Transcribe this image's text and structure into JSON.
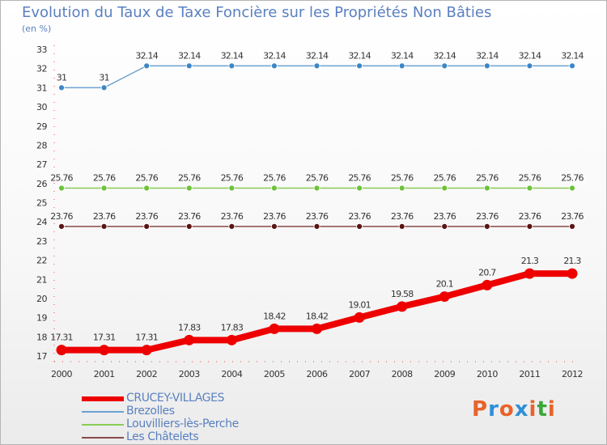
{
  "title": "Evolution du Taux de Taxe Foncière sur les Propriétés Non Bâties",
  "unit_label": "(en %)",
  "logo": {
    "text": "Proxiti",
    "letter_colors": [
      "#e8632b",
      "#2f8fd8",
      "#e8632b",
      "#2f8fd8",
      "#e8632b",
      "#38a838",
      "#e8632b"
    ]
  },
  "chart_data": {
    "type": "line",
    "title": "Evolution du Taux de Taxe Foncière sur les Propriétés Non Bâties",
    "ylabel": "(en %)",
    "x": [
      "2000",
      "2001",
      "2002",
      "2003",
      "2004",
      "2005",
      "2006",
      "2007",
      "2008",
      "2009",
      "2010",
      "2011",
      "2012"
    ],
    "ylim": [
      17,
      33
    ],
    "yticks": [
      17,
      18,
      19,
      20,
      21,
      22,
      23,
      24,
      25,
      26,
      27,
      28,
      29,
      30,
      31,
      32,
      33
    ],
    "grid": false,
    "legend_position": "bottom-left",
    "series": [
      {
        "name": "Brezolles",
        "color": "#6aa2d2",
        "marker": "#3d86c6",
        "values": [
          31,
          31,
          32.14,
          32.14,
          32.14,
          32.14,
          32.14,
          32.14,
          32.14,
          32.14,
          32.14,
          32.14,
          32.14
        ],
        "labels": [
          "31",
          "31",
          "32.14",
          "32.14",
          "32.14",
          "32.14",
          "32.14",
          "32.14",
          "32.14",
          "32.14",
          "32.14",
          "32.14",
          "32.14"
        ]
      },
      {
        "name": "Louvilliers-lès-Perche",
        "color": "#88cc55",
        "marker": "#6cc23a",
        "values": [
          25.76,
          25.76,
          25.76,
          25.76,
          25.76,
          25.76,
          25.76,
          25.76,
          25.76,
          25.76,
          25.76,
          25.76,
          25.76
        ],
        "labels": [
          "25.76",
          "25.76",
          "25.76",
          "25.76",
          "25.76",
          "25.76",
          "25.76",
          "25.76",
          "25.76",
          "25.76",
          "25.76",
          "25.76",
          "25.76"
        ]
      },
      {
        "name": "Les Châtelets",
        "color": "#8a4a4a",
        "marker": "#5a1414",
        "values": [
          23.76,
          23.76,
          23.76,
          23.76,
          23.76,
          23.76,
          23.76,
          23.76,
          23.76,
          23.76,
          23.76,
          23.76,
          23.76
        ],
        "labels": [
          "23.76",
          "23.76",
          "23.76",
          "23.76",
          "23.76",
          "23.76",
          "23.76",
          "23.76",
          "23.76",
          "23.76",
          "23.76",
          "23.76",
          "23.76"
        ]
      },
      {
        "name": "CRUCEY-VILLAGES",
        "color": "#ee0000",
        "marker": "#ee0000",
        "thick": true,
        "values": [
          17.31,
          17.31,
          17.31,
          17.83,
          17.83,
          18.42,
          18.42,
          19.01,
          19.58,
          20.1,
          20.7,
          21.3,
          21.3
        ],
        "labels": [
          "17.31",
          "17.31",
          "17.31",
          "17.83",
          "17.83",
          "18.42",
          "18.42",
          "19.01",
          "19.58",
          "20.1",
          "20.7",
          "21.3",
          "21.3"
        ]
      }
    ]
  },
  "legend": [
    {
      "name": "CRUCEY-VILLAGES",
      "color": "#ee0000",
      "thick": true
    },
    {
      "name": "Brezolles",
      "color": "#6aa2d2",
      "thick": false
    },
    {
      "name": "Louvilliers-lès-Perche",
      "color": "#88cc55",
      "thick": false
    },
    {
      "name": "Les Châtelets",
      "color": "#8a4a4a",
      "thick": false
    }
  ]
}
